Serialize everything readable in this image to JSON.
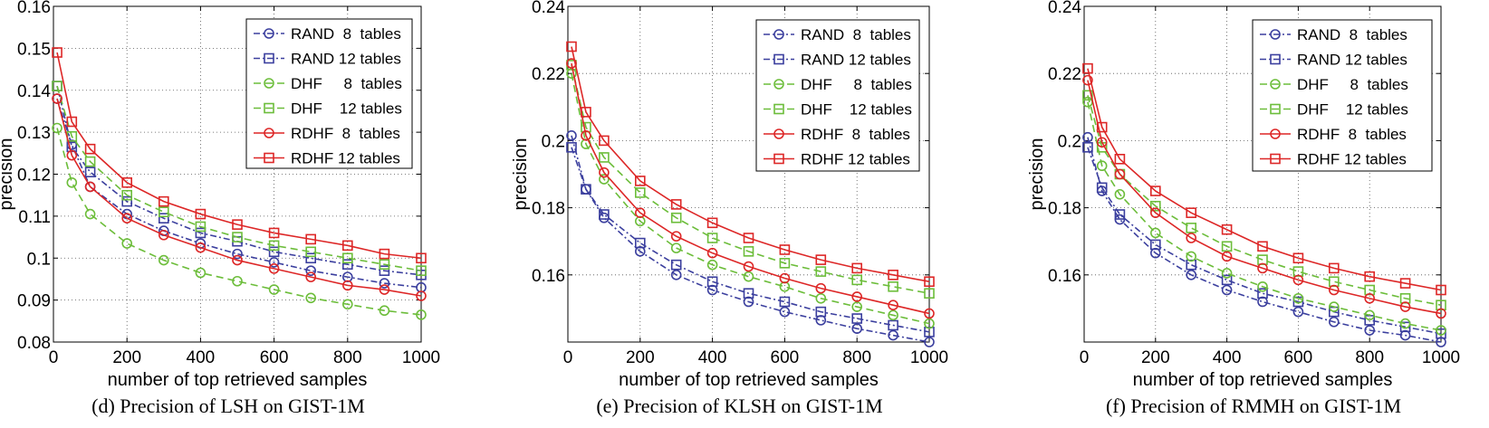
{
  "styles": {
    "RAND": {
      "color": "#3b3f9e",
      "dash": "dash-dot"
    },
    "DHF": {
      "color": "#6cbd3a",
      "dash": "dashed"
    },
    "RDHF": {
      "color": "#dd2727",
      "dash": "solid"
    }
  },
  "chart_data": [
    {
      "type": "line",
      "caption": "(d) Precision of LSH on GIST-1M",
      "xlabel": "number of top retrieved samples",
      "ylabel": "precision",
      "xlim": [
        0,
        1000
      ],
      "ylim": [
        0.08,
        0.16
      ],
      "xticks": [
        0,
        200,
        400,
        600,
        800,
        1000
      ],
      "yticks": [
        0.08,
        0.09,
        0.1,
        0.11,
        0.12,
        0.13,
        0.14,
        0.15,
        0.16
      ],
      "grid": true,
      "legend": "top-right",
      "x": [
        10,
        50,
        100,
        200,
        300,
        400,
        500,
        600,
        700,
        800,
        900,
        1000
      ],
      "series": [
        {
          "name": "RAND  8  tables",
          "method": "RAND",
          "marker": "circle",
          "values": [
            0.138,
            0.127,
            0.117,
            0.1105,
            0.1065,
            0.1035,
            0.101,
            0.099,
            0.097,
            0.0955,
            0.094,
            0.093
          ]
        },
        {
          "name": "RAND 12 tables",
          "method": "RAND",
          "marker": "square",
          "values": [
            0.141,
            0.1265,
            0.1205,
            0.1135,
            0.1095,
            0.106,
            0.104,
            0.1015,
            0.1,
            0.0985,
            0.097,
            0.096
          ]
        },
        {
          "name": "DHF     8  tables",
          "method": "DHF",
          "marker": "circle",
          "values": [
            0.131,
            0.118,
            0.1105,
            0.1035,
            0.0995,
            0.0965,
            0.0945,
            0.0925,
            0.0905,
            0.089,
            0.0875,
            0.0865
          ]
        },
        {
          "name": "DHF    12 tables",
          "method": "DHF",
          "marker": "square",
          "values": [
            0.141,
            0.129,
            0.123,
            0.115,
            0.111,
            0.1075,
            0.105,
            0.103,
            0.1015,
            0.1,
            0.0985,
            0.097
          ]
        },
        {
          "name": "RDHF  8  tables",
          "method": "RDHF",
          "marker": "circle",
          "values": [
            0.138,
            0.1245,
            0.117,
            0.1095,
            0.1055,
            0.1025,
            0.0995,
            0.0975,
            0.0955,
            0.0935,
            0.0925,
            0.091
          ]
        },
        {
          "name": "RDHF 12 tables",
          "method": "RDHF",
          "marker": "square",
          "values": [
            0.149,
            0.1325,
            0.126,
            0.118,
            0.1135,
            0.1105,
            0.108,
            0.106,
            0.1045,
            0.103,
            0.101,
            0.1
          ]
        }
      ]
    },
    {
      "type": "line",
      "caption": "(e) Precision of KLSH on GIST-1M",
      "xlabel": "number of top retrieved samples",
      "ylabel": "precision",
      "xlim": [
        0,
        1000
      ],
      "ylim": [
        0.14,
        0.24
      ],
      "xticks": [
        0,
        200,
        400,
        600,
        800,
        1000
      ],
      "yticks": [
        0.16,
        0.18,
        0.2,
        0.22,
        0.24
      ],
      "grid": true,
      "legend": "top-right",
      "x": [
        10,
        50,
        100,
        200,
        300,
        400,
        500,
        600,
        700,
        800,
        900,
        1000
      ],
      "series": [
        {
          "name": "RAND  8  tables",
          "method": "RAND",
          "marker": "circle",
          "values": [
            0.2015,
            0.1855,
            0.177,
            0.167,
            0.16,
            0.1555,
            0.152,
            0.149,
            0.1465,
            0.144,
            0.142,
            0.14
          ]
        },
        {
          "name": "RAND 12 tables",
          "method": "RAND",
          "marker": "square",
          "values": [
            0.198,
            0.1855,
            0.178,
            0.1695,
            0.163,
            0.158,
            0.1545,
            0.152,
            0.149,
            0.147,
            0.145,
            0.143
          ]
        },
        {
          "name": "DHF     8  tables",
          "method": "DHF",
          "marker": "circle",
          "values": [
            0.22,
            0.199,
            0.1885,
            0.176,
            0.168,
            0.163,
            0.1595,
            0.1565,
            0.153,
            0.1505,
            0.148,
            0.1455
          ]
        },
        {
          "name": "DHF    12 tables",
          "method": "DHF",
          "marker": "square",
          "values": [
            0.2225,
            0.204,
            0.195,
            0.1845,
            0.177,
            0.171,
            0.167,
            0.1635,
            0.161,
            0.1585,
            0.1565,
            0.1545
          ]
        },
        {
          "name": "RDHF  8  tables",
          "method": "RDHF",
          "marker": "circle",
          "values": [
            0.223,
            0.2015,
            0.1905,
            0.1785,
            0.1715,
            0.1665,
            0.1625,
            0.159,
            0.156,
            0.1535,
            0.151,
            0.1485
          ]
        },
        {
          "name": "RDHF 12 tables",
          "method": "RDHF",
          "marker": "square",
          "values": [
            0.228,
            0.2085,
            0.2,
            0.188,
            0.181,
            0.1755,
            0.171,
            0.1675,
            0.1645,
            0.162,
            0.16,
            0.158
          ]
        }
      ]
    },
    {
      "type": "line",
      "caption": "(f) Precision of RMMH on GIST-1M",
      "xlabel": "number of top retrieved samples",
      "ylabel": "precision",
      "xlim": [
        0,
        1000
      ],
      "ylim": [
        0.14,
        0.24
      ],
      "xticks": [
        0,
        200,
        400,
        600,
        800,
        1000
      ],
      "yticks": [
        0.16,
        0.18,
        0.2,
        0.22,
        0.24
      ],
      "grid": true,
      "legend": "top-right",
      "x": [
        10,
        50,
        100,
        200,
        300,
        400,
        500,
        600,
        700,
        800,
        900,
        1000
      ],
      "series": [
        {
          "name": "RAND  8  tables",
          "method": "RAND",
          "marker": "circle",
          "values": [
            0.201,
            0.185,
            0.1765,
            0.1665,
            0.16,
            0.1555,
            0.152,
            0.149,
            0.146,
            0.1435,
            0.142,
            0.14
          ]
        },
        {
          "name": "RAND 12 tables",
          "method": "RAND",
          "marker": "square",
          "values": [
            0.198,
            0.186,
            0.178,
            0.169,
            0.163,
            0.1585,
            0.1545,
            0.152,
            0.149,
            0.1465,
            0.1445,
            0.1425
          ]
        },
        {
          "name": "DHF     8  tables",
          "method": "DHF",
          "marker": "circle",
          "values": [
            0.2115,
            0.1925,
            0.184,
            0.1725,
            0.1655,
            0.1605,
            0.1565,
            0.153,
            0.1505,
            0.148,
            0.1455,
            0.1435
          ]
        },
        {
          "name": "DHF    12 tables",
          "method": "DHF",
          "marker": "square",
          "values": [
            0.2135,
            0.198,
            0.19,
            0.1805,
            0.174,
            0.1685,
            0.1645,
            0.161,
            0.158,
            0.1555,
            0.153,
            0.151
          ]
        },
        {
          "name": "RDHF  8  tables",
          "method": "RDHF",
          "marker": "circle",
          "values": [
            0.218,
            0.1995,
            0.19,
            0.1785,
            0.171,
            0.1655,
            0.162,
            0.1585,
            0.1555,
            0.153,
            0.1505,
            0.1485
          ]
        },
        {
          "name": "RDHF 12 tables",
          "method": "RDHF",
          "marker": "square",
          "values": [
            0.2215,
            0.204,
            0.1945,
            0.185,
            0.1785,
            0.1735,
            0.1685,
            0.165,
            0.162,
            0.1595,
            0.1575,
            0.1555
          ]
        }
      ]
    }
  ]
}
